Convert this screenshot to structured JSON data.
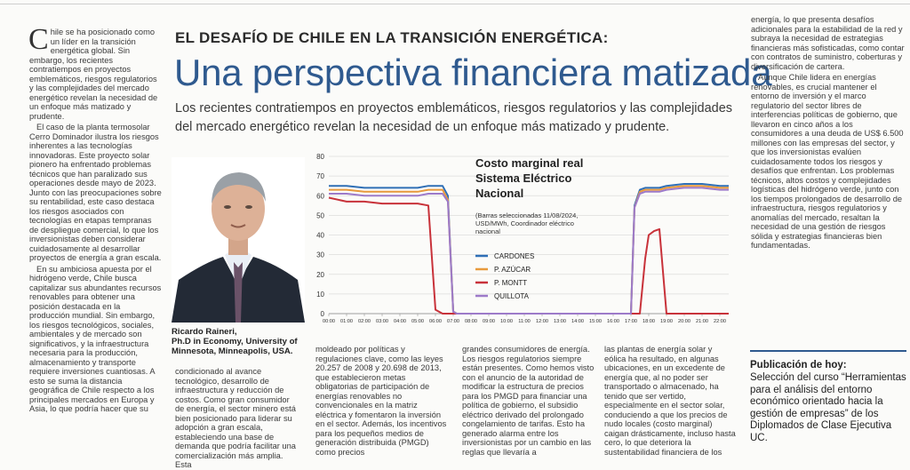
{
  "article": {
    "kicker": "EL DESAFÍO DE CHILE EN LA TRANSICIÓN ENERGÉTICA:",
    "headline": "Una perspectiva financiera matizada",
    "deck": "Los recientes contratiempos en proyectos emblemáticos, riesgos regulatorios y las complejidades del mercado energético revelan la necesidad de un enfoque más matizado y prudente.",
    "left_column": {
      "dropcap": "C",
      "paragraphs": [
        "hile se ha posicionado como un líder en la transición energética global. Sin embargo, los recientes contratiempos en proyectos emblemáticos, riesgos regulatorios y las complejidades del mercado energético revelan la necesidad de un enfoque más matizado y prudente.",
        "El caso de la planta termosolar Cerro Dominador ilustra los riesgos inherentes a las tecnologías innovadoras. Este proyecto solar pionero ha enfrentado problemas técnicos que han paralizado sus operaciones desde mayo de 2023. Junto con las preocupaciones sobre su rentabilidad, este caso destaca los riesgos asociados con tecnologías en etapas tempranas de despliegue comercial, lo que los inversionistas deben considerar cuidadosamente al desarrollar proyectos de energía a gran escala.",
        "En su ambiciosa apuesta por el hidrógeno verde, Chile busca capitalizar sus abundantes recursos renovables para obtener una posición destacada en la producción mundial. Sin embargo, los riesgos tecnológicos, sociales, ambientales y de mercado son significativos, y la infraestructura necesaria para la producción, almacenamiento y transporte requiere inversiones cuantiosas. A esto se suma la distancia geográfica de Chile respecto a los principales mercados en Europa y Asia, lo que podría hacer que su"
      ]
    },
    "mid_col_1": "condicionado al avance tecnológico, desarrollo de infraestructura y reducción de costos. Como gran consumidor de energía, el sector minero está bien posicionado para liderar su adopción a gran escala, estableciendo una base de demanda que podría facilitar una comercialización más amplia. Esta",
    "mid_col_2": "moldeado por políticas y regulaciones clave, como las leyes 20.257 de 2008 y 20.698 de 2013, que establecieron metas obligatorias de participación de energías renovables no convencionales en la matriz eléctrica y fomentaron la inversión en el sector. Además, los incentivos para los pequeños medios de generación distribuida (PMGD) como precios",
    "mid_col_3": "grandes consumidores de energía. Los riesgos regulatorios siempre están presentes. Como hemos visto con el anuncio de la autoridad de modificar la estructura de precios para los PMGD para financiar una política de gobierno, el subsidio eléctrico derivado del prolongado congelamiento de tarifas. Esto ha generado alarma entre los inversionistas por un cambio en las reglas que llevaría a",
    "mid_col_4": "las plantas de energía solar y eólica ha resultado, en algunas ubicaciones, en un excedente de energía que, al no poder ser transportado o almacenado, ha tenido que ser vertido, especialmente en el sector solar, conduciendo a que los precios de nudo locales (costo marginal) caigan drásticamente, incluso hasta cero, lo que deteriora la sustentabilidad financiera de los",
    "right_column": [
      "energía, lo que presenta desafíos adicionales para la estabilidad de la red y subraya la necesidad de estrategias financieras más sofisticadas, como contar con contratos de suministro, coberturas y diversificación de cartera.",
      "Aunque Chile lidera en energías renovables, es crucial mantener el entorno de inversión y el marco regulatorio del sector libres de interferencias políticas de gobierno, que llevaron en cinco años a los consumidores a una deuda de US$ 6.500 millones con las empresas del sector, y que los inversionistas evalúen cuidadosamente todos los riesgos y desafíos que enfrentan. Los problemas técnicos, altos costos y complejidades logísticas del hidrógeno verde, junto con los tiempos prolongados de desarrollo de infraestructura, riesgos regulatorios y anomalías del mercado, resaltan la necesidad de una gestión de riesgos sólida y estrategias financieras bien fundamentadas."
    ]
  },
  "photo": {
    "name": "Ricardo Raineri,",
    "credential": "Ph.D in Economy, University of Minnesota, Minneapolis, USA."
  },
  "promo": {
    "title": "Publicación de hoy:",
    "body": "Selección del curso “Herramientas para el análisis del entorno económico orientado hacia la gestión de empresas” de los Diplomados de Clase Ejecutiva UC."
  },
  "chart_data": {
    "type": "line",
    "title": "Costo marginal real Sistema Eléctrico Nacional",
    "subtitle": "(Barras seleccionadas 11/08/2024, USD/MWh, Coordinador eléctrico nacional",
    "ylim": [
      0,
      80
    ],
    "yticks": [
      0,
      10,
      20,
      30,
      40,
      50,
      60,
      70,
      80
    ],
    "xticks": [
      "00:00",
      "01:00",
      "02:00",
      "03:00",
      "04:00",
      "05:00",
      "06:00",
      "07:00",
      "08:00",
      "09:00",
      "10:00",
      "11:00",
      "12:00",
      "13:00",
      "14:00",
      "15:00",
      "16:00",
      "17:00",
      "18:00",
      "19:00",
      "20:00",
      "21:00",
      "22:00"
    ],
    "x_hours": [
      0,
      1,
      2,
      3,
      4,
      5,
      5.6,
      6,
      6.4,
      6.7,
      7,
      7.2,
      17,
      17.2,
      17.5,
      17.8,
      18,
      18.3,
      18.6,
      19,
      20,
      21,
      22,
      22.5
    ],
    "series": [
      {
        "name": "CARDONES",
        "color": "#2f6fb6",
        "values": [
          65,
          65,
          64,
          64,
          64,
          64,
          65,
          65,
          65,
          60,
          1,
          0,
          0,
          55,
          63,
          64,
          64,
          64,
          64,
          65,
          66,
          66,
          65,
          65
        ]
      },
      {
        "name": "P. AZÚCAR",
        "color": "#e89a3c",
        "values": [
          63,
          63,
          62,
          62,
          62,
          62,
          63,
          63,
          63,
          58,
          1,
          0,
          0,
          54,
          62,
          63,
          63,
          63,
          63,
          64,
          65,
          65,
          64,
          64
        ]
      },
      {
        "name": "P. MONTT",
        "color": "#c8323a",
        "values": [
          59,
          57,
          57,
          56,
          56,
          56,
          55,
          2,
          0,
          0,
          0,
          0,
          0,
          0,
          0,
          28,
          40,
          42,
          43,
          0,
          0,
          0,
          0,
          0
        ]
      },
      {
        "name": "QUILLOTA",
        "color": "#9d7ac9",
        "values": [
          61,
          61,
          60,
          60,
          60,
          60,
          61,
          61,
          61,
          57,
          1,
          0,
          0,
          54,
          61,
          62,
          62,
          62,
          62,
          63,
          64,
          64,
          63,
          63
        ]
      }
    ]
  }
}
